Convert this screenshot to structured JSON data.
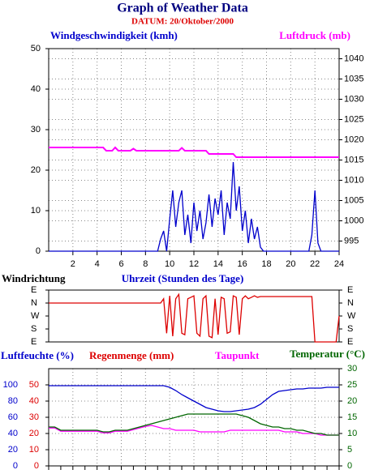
{
  "chart_data": [
    {
      "type": "line",
      "title": "Graph of Weather Data",
      "subtitle": "DATUM: 20/Oktober/2000",
      "x_label": "Uhrzeit (Stunden des Tage)",
      "xlim": [
        0,
        24
      ],
      "xticks": [
        2,
        4,
        6,
        8,
        10,
        12,
        14,
        16,
        18,
        20,
        22,
        24
      ],
      "ylim": [
        0,
        50
      ],
      "yticks": [
        0,
        10,
        20,
        30,
        40,
        50
      ],
      "y2lim": [
        992.5,
        1042.5
      ],
      "y2ticks": [
        995,
        1000,
        1005,
        1010,
        1015,
        1020,
        1025,
        1030,
        1035,
        1040
      ],
      "grid": true,
      "x": [
        0,
        0.25,
        0.5,
        0.75,
        1,
        1.25,
        1.5,
        1.75,
        2,
        2.25,
        2.5,
        2.75,
        3,
        3.25,
        3.5,
        3.75,
        4,
        4.25,
        4.5,
        4.75,
        5,
        5.25,
        5.5,
        5.75,
        6,
        6.25,
        6.5,
        6.75,
        7,
        7.25,
        7.5,
        7.75,
        8,
        8.25,
        8.5,
        8.75,
        9,
        9.25,
        9.5,
        9.75,
        10,
        10.25,
        10.5,
        10.75,
        11,
        11.25,
        11.5,
        11.75,
        12,
        12.25,
        12.5,
        12.75,
        13,
        13.25,
        13.5,
        13.75,
        14,
        14.25,
        14.5,
        14.75,
        15,
        15.25,
        15.5,
        15.75,
        16,
        16.25,
        16.5,
        16.75,
        17,
        17.25,
        17.5,
        17.75,
        18,
        18.25,
        18.5,
        18.75,
        19,
        19.25,
        19.5,
        19.75,
        20,
        20.25,
        20.5,
        20.75,
        21,
        21.25,
        21.5,
        21.75,
        22,
        22.25,
        22.5,
        22.75,
        23,
        23.25,
        23.5,
        23.75,
        24
      ],
      "series": [
        {
          "name": "Windgeschwindigkeit (kmh)",
          "color": "#0000cc",
          "axis": "y",
          "values": [
            0,
            0,
            0,
            0,
            0,
            0,
            0,
            0,
            0,
            0,
            0,
            0,
            0,
            0,
            0,
            0,
            0,
            0,
            0,
            0,
            0,
            0,
            0,
            0,
            0,
            0,
            0,
            0,
            0,
            0,
            0,
            0,
            0,
            0,
            0,
            0,
            0,
            3,
            5,
            0,
            8,
            15,
            6,
            12,
            15,
            4,
            9,
            2,
            12,
            5,
            10,
            3,
            7,
            14,
            6,
            13,
            9,
            15,
            4,
            12,
            8,
            22,
            10,
            16,
            5,
            10,
            2,
            8,
            3,
            6,
            1,
            0,
            0,
            0,
            0,
            0,
            0,
            0,
            0,
            0,
            0,
            0,
            0,
            0,
            0,
            0,
            0,
            4,
            15,
            2,
            0,
            0,
            0,
            0,
            0,
            0,
            0
          ]
        },
        {
          "name": "Luftdruck (mb)",
          "color": "#ff00ff",
          "axis": "y2",
          "values": [
            1018.1,
            1018.1,
            1018.1,
            1018.1,
            1018.1,
            1018.1,
            1018.1,
            1018.1,
            1018.1,
            1018.1,
            1018.1,
            1018.1,
            1018.1,
            1018.1,
            1018.1,
            1018.1,
            1018.1,
            1018.1,
            1018.1,
            1017.3,
            1017.3,
            1017.3,
            1018.1,
            1017.3,
            1017.3,
            1017.3,
            1017.3,
            1017.3,
            1017.8,
            1017.3,
            1017.3,
            1017.3,
            1017.3,
            1017.3,
            1017.3,
            1017.3,
            1017.3,
            1017.3,
            1017.3,
            1017.3,
            1017.3,
            1017.3,
            1017.3,
            1017.3,
            1018,
            1017.3,
            1017.3,
            1017.3,
            1017.3,
            1017.3,
            1017.3,
            1017.3,
            1017.3,
            1016.5,
            1016.5,
            1016.5,
            1016.5,
            1016.5,
            1016.5,
            1016.5,
            1016.5,
            1016.5,
            1015.7,
            1015.7,
            1015.7,
            1015.7,
            1015.7,
            1015.7,
            1015.7,
            1015.7,
            1015.7,
            1015.7,
            1015.7,
            1015.7,
            1015.7,
            1015.7,
            1015.7,
            1015.7,
            1015.7,
            1015.7,
            1015.7,
            1015.7,
            1015.7,
            1015.7,
            1015.7,
            1015.7,
            1015.7,
            1015.7,
            1015.7,
            1015.7,
            1015.7,
            1015.7,
            1015.7,
            1015.7,
            1015.7,
            1015.7,
            1015.7
          ]
        }
      ]
    },
    {
      "type": "line",
      "y_label": "Windrichtung",
      "xlim": [
        0,
        24
      ],
      "ylim": [
        0,
        360
      ],
      "yticks": [
        {
          "value": 0,
          "label": "E"
        },
        {
          "value": 90,
          "label": "S"
        },
        {
          "value": 180,
          "label": "W"
        },
        {
          "value": 270,
          "label": "N"
        },
        {
          "value": 360,
          "label": "E"
        }
      ],
      "x": [
        0,
        0.25,
        0.5,
        0.75,
        1,
        1.25,
        1.5,
        1.75,
        2,
        2.25,
        2.5,
        2.75,
        3,
        3.25,
        3.5,
        3.75,
        4,
        4.25,
        4.5,
        4.75,
        5,
        5.25,
        5.5,
        5.75,
        6,
        6.25,
        6.5,
        6.75,
        7,
        7.25,
        7.5,
        7.75,
        8,
        8.25,
        8.5,
        8.75,
        9,
        9.25,
        9.5,
        9.75,
        10,
        10.25,
        10.5,
        10.75,
        11,
        11.25,
        11.5,
        11.75,
        12,
        12.25,
        12.5,
        12.75,
        13,
        13.25,
        13.5,
        13.75,
        14,
        14.25,
        14.5,
        14.75,
        15,
        15.25,
        15.5,
        15.75,
        16,
        16.25,
        16.5,
        16.75,
        17,
        17.25,
        17.5,
        17.75,
        18,
        18.25,
        18.5,
        18.75,
        19,
        19.25,
        19.5,
        19.75,
        20,
        20.25,
        20.5,
        20.75,
        21,
        21.25,
        21.5,
        21.75,
        22,
        22.25,
        22.5,
        22.75,
        23,
        23.25,
        23.5,
        23.75,
        24
      ],
      "series": [
        {
          "color": "#dd0000",
          "axis": "y",
          "values": [
            270,
            270,
            270,
            270,
            270,
            270,
            270,
            270,
            270,
            270,
            270,
            270,
            270,
            270,
            270,
            270,
            270,
            270,
            270,
            270,
            270,
            270,
            270,
            270,
            270,
            270,
            270,
            270,
            270,
            270,
            270,
            270,
            270,
            270,
            270,
            270,
            270,
            270,
            300,
            60,
            320,
            40,
            300,
            330,
            60,
            50,
            300,
            310,
            320,
            60,
            40,
            300,
            320,
            40,
            30,
            300,
            50,
            310,
            300,
            60,
            70,
            320,
            310,
            50,
            300,
            320,
            300,
            310,
            320,
            310,
            315,
            315,
            315,
            315,
            315,
            315,
            315,
            315,
            315,
            315,
            315,
            315,
            315,
            315,
            315,
            315,
            315,
            315,
            0,
            0,
            0,
            0,
            0,
            0,
            0,
            0,
            180
          ]
        }
      ]
    },
    {
      "type": "line",
      "y3_label": "Regenmenge (mm)",
      "xlim": [
        0,
        24
      ],
      "xticks": [
        0,
        1,
        2,
        3,
        4,
        5,
        6,
        7,
        8,
        9,
        10,
        11,
        12,
        13,
        14,
        15,
        16,
        17,
        18,
        19,
        20,
        21,
        22,
        23,
        24
      ],
      "xtick_labels": false,
      "ylim": [
        0,
        120
      ],
      "yticks": [
        0,
        20,
        40,
        60,
        80,
        100
      ],
      "ytick_color": "#0000cc",
      "y3lim": [
        0,
        60
      ],
      "y3ticks": [
        0,
        10,
        20,
        30,
        40,
        50
      ],
      "y3tick_color": "#dd0000",
      "y2lim": [
        0,
        30
      ],
      "y2ticks": [
        0,
        5,
        10,
        15,
        20,
        25,
        30
      ],
      "y2tick_color": "#006600",
      "grid": true,
      "x": [
        0,
        0.5,
        1,
        1.5,
        2,
        2.5,
        3,
        3.5,
        4,
        4.5,
        5,
        5.5,
        6,
        6.5,
        7,
        7.5,
        8,
        8.5,
        9,
        9.5,
        10,
        10.5,
        11,
        11.5,
        12,
        12.5,
        13,
        13.5,
        14,
        14.5,
        15,
        15.5,
        16,
        16.5,
        17,
        17.5,
        18,
        18.5,
        19,
        19.5,
        20,
        20.5,
        21,
        21.5,
        22,
        22.5,
        23,
        23.5,
        24
      ],
      "series": [
        {
          "name": "Luftfeuchte (%)",
          "color": "#0000cc",
          "axis": "y",
          "values": [
            99,
            99,
            99,
            99,
            99,
            99,
            99,
            99,
            99,
            99,
            99,
            99,
            99,
            99,
            99,
            99,
            99,
            99,
            99,
            99,
            97,
            93,
            88,
            84,
            80,
            76,
            72,
            70,
            68,
            67,
            67,
            68,
            69,
            70,
            72,
            76,
            82,
            88,
            92,
            93,
            94,
            95,
            95,
            96,
            96,
            96,
            97,
            97,
            97
          ]
        },
        {
          "name": "Taupunkt",
          "color": "#ff00ff",
          "axis": "y2",
          "values": [
            11.7,
            11.7,
            10.7,
            10.7,
            10.7,
            10.7,
            10.7,
            10.7,
            10.7,
            10.2,
            10.2,
            10.7,
            10.7,
            10.7,
            11.2,
            11.7,
            12.2,
            12.5,
            12,
            11.5,
            11.5,
            11,
            11,
            11,
            11,
            10.5,
            10.5,
            10.5,
            10.5,
            10.5,
            11,
            11,
            11,
            11,
            11,
            11,
            11,
            11,
            11,
            10.5,
            10.5,
            10.5,
            10,
            10,
            10,
            9.5,
            9.5,
            9.5,
            9.5
          ]
        },
        {
          "name": "Temperatur (°C)",
          "color": "#006600",
          "axis": "y2",
          "values": [
            12,
            12,
            11,
            11,
            11,
            11,
            11,
            11,
            11,
            10.5,
            10.5,
            11,
            11,
            11,
            11.5,
            12,
            12.5,
            13,
            13.5,
            14,
            14.5,
            15,
            15.5,
            16,
            16,
            16,
            16,
            16,
            16,
            16,
            16,
            16,
            15.5,
            15,
            14,
            13,
            12.5,
            12,
            12,
            11.5,
            11.5,
            11,
            11,
            10.5,
            10,
            10,
            9.5,
            9.5,
            9.5
          ]
        }
      ]
    }
  ]
}
